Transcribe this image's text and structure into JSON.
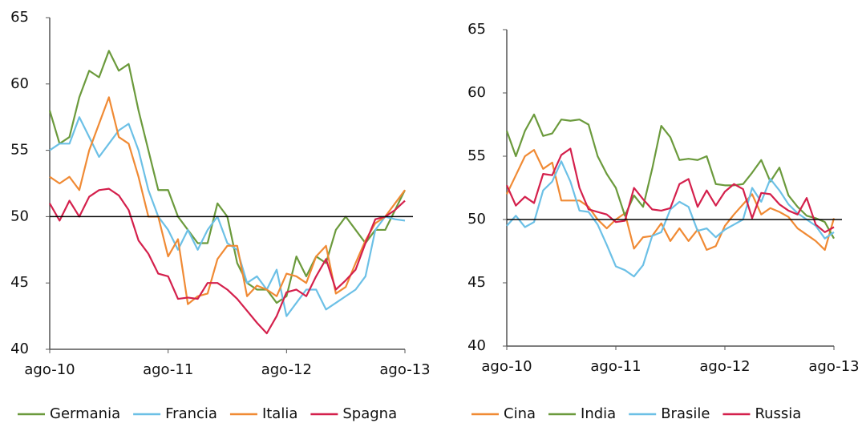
{
  "chart_data": [
    {
      "type": "line",
      "x": [
        0,
        1,
        2,
        3,
        4,
        5,
        6,
        7,
        8,
        9,
        10,
        11,
        12,
        13,
        14,
        15,
        16,
        17,
        18,
        19,
        20,
        21,
        22,
        23,
        24,
        25,
        26,
        27,
        28,
        29,
        30,
        31,
        32,
        33,
        34,
        35,
        36
      ],
      "xlim": [
        0,
        36
      ],
      "xticks": [
        {
          "value": 0,
          "label": "ago-10"
        },
        {
          "value": 12,
          "label": "ago-11"
        },
        {
          "value": 24,
          "label": "ago-12"
        },
        {
          "value": 36,
          "label": "ago-13"
        }
      ],
      "ylim": [
        40,
        65
      ],
      "yticks": [
        40,
        45,
        50,
        55,
        60,
        65
      ],
      "reference_line": 50,
      "legend": "bottom",
      "series": [
        {
          "name": "Germania",
          "color": "#6b9a3c",
          "values": [
            58,
            55.5,
            56,
            59,
            61,
            60.5,
            62.5,
            61,
            61.5,
            58,
            55,
            52,
            52,
            50,
            49,
            48,
            48,
            51,
            50,
            46.5,
            45,
            44.5,
            44.5,
            43.5,
            44,
            47,
            45.5,
            47,
            46.5,
            49,
            50,
            49,
            48,
            49,
            49,
            50.5,
            52
          ]
        },
        {
          "name": "Francia",
          "color": "#6cc0e6",
          "values": [
            55,
            55.5,
            55.5,
            57.5,
            56,
            54.5,
            55.5,
            56.5,
            57,
            55,
            52,
            50,
            49,
            47.5,
            49,
            47.5,
            49,
            50,
            48,
            47.5,
            45,
            45.5,
            44.5,
            46,
            42.5,
            43.5,
            44.5,
            44.5,
            43,
            43.5,
            44,
            44.5,
            45.5,
            49,
            50,
            49.8,
            49.7
          ]
        },
        {
          "name": "Italia",
          "color": "#f08a34",
          "values": [
            53,
            52.5,
            53,
            52,
            55,
            57,
            59,
            56,
            55.5,
            53,
            50,
            50,
            47,
            48.3,
            43.4,
            44,
            44.2,
            46.8,
            47.8,
            47.8,
            44,
            44.8,
            44.5,
            44,
            45.7,
            45.5,
            45,
            47,
            47.8,
            44.2,
            44.7,
            46.5,
            48.2,
            49.5,
            50,
            51,
            52
          ]
        },
        {
          "name": "Spagna",
          "color": "#d4204c",
          "values": [
            51,
            49.7,
            51.2,
            50,
            51.5,
            52,
            52.1,
            51.6,
            50.5,
            48.2,
            47.2,
            45.7,
            45.5,
            43.8,
            43.9,
            43.8,
            45,
            45,
            44.5,
            43.8,
            42.9,
            42,
            41.2,
            42.5,
            44.3,
            44.5,
            44,
            45.5,
            46.8,
            44.5,
            45.2,
            46,
            48,
            49.8,
            50,
            50.5,
            51.2
          ]
        }
      ]
    },
    {
      "type": "line",
      "x": [
        0,
        1,
        2,
        3,
        4,
        5,
        6,
        7,
        8,
        9,
        10,
        11,
        12,
        13,
        14,
        15,
        16,
        17,
        18,
        19,
        20,
        21,
        22,
        23,
        24,
        25,
        26,
        27,
        28,
        29,
        30,
        31,
        32,
        33,
        34,
        35,
        36
      ],
      "xlim": [
        0,
        36
      ],
      "xticks": [
        {
          "value": 0,
          "label": "ago-10"
        },
        {
          "value": 12,
          "label": "ago-11"
        },
        {
          "value": 24,
          "label": "ago-12"
        },
        {
          "value": 36,
          "label": "ago-13"
        }
      ],
      "ylim": [
        40,
        65
      ],
      "yticks": [
        40,
        45,
        50,
        55,
        60,
        65
      ],
      "reference_line": 50,
      "legend": "bottom",
      "series": [
        {
          "name": "Cina",
          "color": "#f08a34",
          "values": [
            52,
            53.5,
            55,
            55.5,
            54,
            54.5,
            51.5,
            51.5,
            51.5,
            51,
            50,
            49.3,
            50,
            50.5,
            47.7,
            48.6,
            48.7,
            49.7,
            48.3,
            49.3,
            48.3,
            49.2,
            47.6,
            47.9,
            49.5,
            50.4,
            51.2,
            52,
            50.4,
            50.9,
            50.6,
            50.2,
            49.3,
            48.8,
            48.3,
            47.6,
            50.1
          ]
        },
        {
          "name": "India",
          "color": "#6b9a3c",
          "values": [
            57,
            55,
            57,
            58.3,
            56.6,
            56.8,
            57.9,
            57.8,
            57.9,
            57.5,
            55,
            53.6,
            52.5,
            50.3,
            51.9,
            51,
            54,
            57.4,
            56.5,
            54.7,
            54.8,
            54.7,
            55,
            52.8,
            52.7,
            52.7,
            52.8,
            53.7,
            54.7,
            53,
            54.1,
            51.9,
            51,
            50.3,
            50.1,
            49.8,
            48.5
          ]
        },
        {
          "name": "Brasile",
          "color": "#6cc0e6",
          "values": [
            49.5,
            50.3,
            49.4,
            49.8,
            52.3,
            53,
            54.6,
            53,
            50.7,
            50.6,
            49.6,
            48,
            46.3,
            46,
            45.5,
            46.4,
            48.7,
            49,
            50.8,
            51.4,
            51,
            49.1,
            49.3,
            48.6,
            49.2,
            49.6,
            50,
            52.5,
            51.4,
            53.2,
            52.3,
            51.2,
            50.5,
            50,
            49.5,
            48.5,
            49
          ]
        },
        {
          "name": "Russia",
          "color": "#d4204c",
          "values": [
            52.7,
            51.1,
            51.8,
            51.3,
            53.6,
            53.5,
            55.1,
            55.6,
            52.5,
            50.8,
            50.6,
            50.4,
            49.8,
            49.9,
            52.5,
            51.6,
            50.8,
            50.7,
            50.9,
            52.8,
            53.2,
            51,
            52.3,
            51.1,
            52.2,
            52.8,
            52.4,
            50.1,
            52.1,
            52,
            51.2,
            50.7,
            50.4,
            51.7,
            49.6,
            49,
            49.4
          ]
        }
      ]
    }
  ]
}
